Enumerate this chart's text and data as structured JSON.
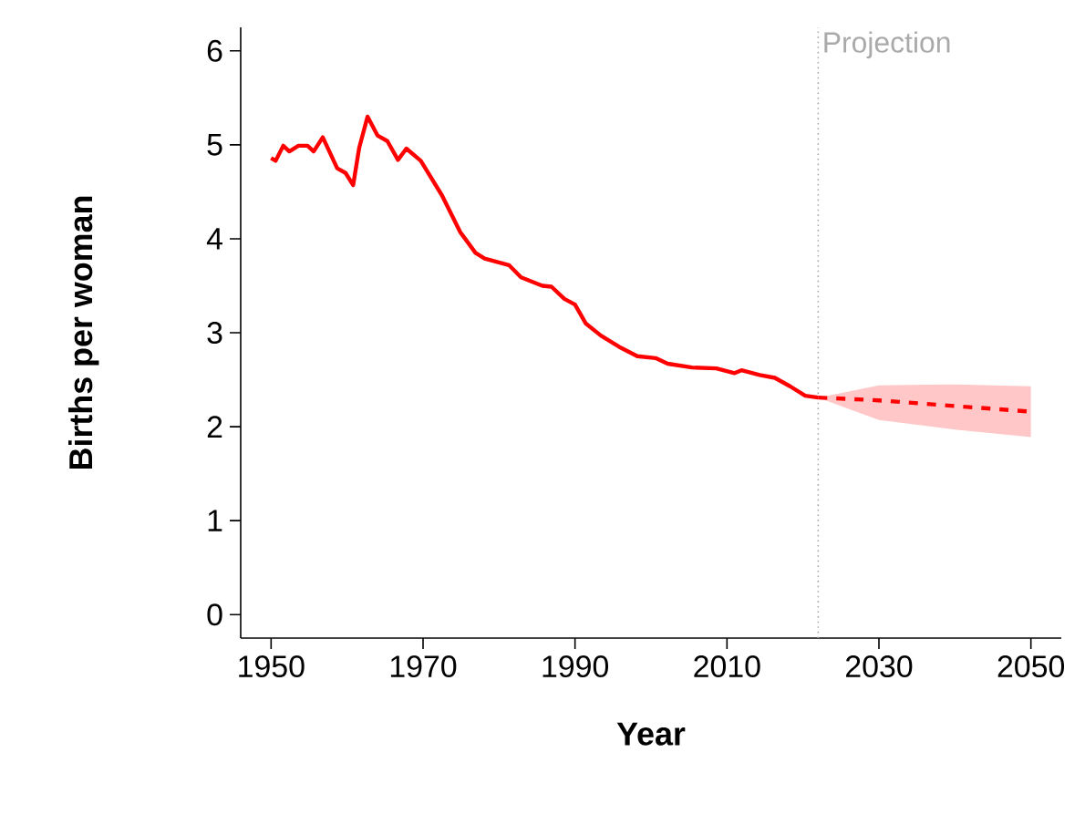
{
  "chart_data": {
    "type": "line",
    "xlabel": "Year",
    "ylabel": "Births per woman",
    "xlim": [
      1946,
      2054
    ],
    "ylim": [
      -0.25,
      6.25
    ],
    "xticks": [
      1950,
      1970,
      1990,
      2010,
      2030,
      2050
    ],
    "yticks": [
      0,
      1,
      2,
      3,
      4,
      5,
      6
    ],
    "marker": "none",
    "ref_lines": [
      {
        "axis": "x",
        "value": 2022,
        "label": "Projection",
        "color": "#aaaaaa",
        "line_style": "dotted"
      }
    ],
    "series": [
      {
        "color": "#ff0000",
        "line_style": "solid",
        "x": [
          1950,
          1950.6,
          1951.6,
          1952.4,
          1953.6,
          1954.8,
          1955.6,
          1956.8,
          1958.7,
          1959.8,
          1960.8,
          1961.6,
          1962.7,
          1964,
          1965.3,
          1966.7,
          1967.8,
          1969.7,
          1972.5,
          1974.9,
          1976.9,
          1978.1,
          1981.3,
          1982.9,
          1985.7,
          1986.9,
          1988.6,
          1990,
          1991.4,
          1993.4,
          1995.8,
          1998.2,
          2000.6,
          2002.2,
          2005.4,
          2008.6,
          2011,
          2011.9,
          2014.3,
          2016.3,
          2018.3,
          2020.3,
          2022
        ],
        "values": [
          4.86,
          4.83,
          4.99,
          4.93,
          4.99,
          4.99,
          4.93,
          5.08,
          4.75,
          4.7,
          4.57,
          4.97,
          5.3,
          5.1,
          5.04,
          4.84,
          4.96,
          4.83,
          4.46,
          4.07,
          3.85,
          3.79,
          3.72,
          3.59,
          3.5,
          3.49,
          3.36,
          3.3,
          3.1,
          2.97,
          2.85,
          2.75,
          2.73,
          2.67,
          2.63,
          2.62,
          2.57,
          2.6,
          2.55,
          2.52,
          2.43,
          2.33,
          2.31
        ]
      },
      {
        "color": "#ff0000",
        "line_style": "dashed",
        "x": [
          2022,
          2030,
          2040,
          2050
        ],
        "values": [
          2.31,
          2.28,
          2.22,
          2.16
        ],
        "lower": [
          2.31,
          2.07,
          1.97,
          1.89
        ],
        "upper": [
          2.31,
          2.44,
          2.45,
          2.43
        ]
      }
    ]
  }
}
